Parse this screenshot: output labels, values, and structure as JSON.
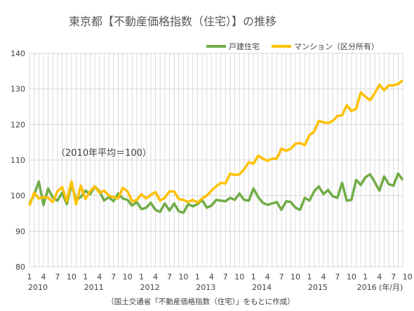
{
  "chart_data": {
    "type": "line",
    "title": "東京都【不動産価格指数（住宅）】の推移",
    "annotation": "（2010年平均＝100）",
    "source": "（国土交通省「不動産価格指数（住宅）」をもとに作成）",
    "x_unit_label": "(年/月)",
    "ylim": [
      80,
      140
    ],
    "y_ticks": [
      "80",
      "90",
      "100",
      "110",
      "120",
      "130",
      "140"
    ],
    "x_tick_months": [
      "1",
      "4",
      "7",
      "10",
      "1",
      "4",
      "7",
      "10",
      "1",
      "4",
      "7",
      "10",
      "1",
      "4",
      "7",
      "10",
      "1",
      "4",
      "7",
      "10",
      "1",
      "4",
      "7",
      "10",
      "1",
      "4",
      "7",
      "10"
    ],
    "year_labels": [
      "2010",
      "2011",
      "2012",
      "2013",
      "2014",
      "2015",
      "2016"
    ],
    "grid": true,
    "legend_position": "top-right",
    "series": [
      {
        "name": "戸建住宅",
        "color": "#70AD47",
        "values": [
          97.8,
          100.2,
          104.0,
          97.4,
          102.0,
          99.4,
          98.6,
          100.8,
          97.6,
          103.2,
          98.8,
          99.6,
          101.4,
          100.4,
          102.6,
          101.2,
          98.6,
          99.6,
          98.4,
          100.6,
          99.2,
          98.8,
          97.2,
          98.2,
          96.2,
          96.6,
          98.0,
          96.0,
          95.4,
          97.8,
          95.8,
          97.8,
          95.6,
          95.2,
          97.6,
          97.0,
          97.6,
          98.8,
          96.6,
          97.2,
          98.8,
          98.6,
          98.4,
          99.4,
          98.8,
          100.6,
          98.8,
          98.6,
          102.0,
          99.6,
          98.0,
          97.4,
          97.8,
          98.2,
          96.0,
          98.4,
          98.2,
          96.6,
          96.0,
          99.4,
          98.6,
          101.2,
          102.6,
          100.4,
          101.6,
          99.8,
          99.4,
          103.6,
          98.6,
          98.8,
          104.4,
          103.0,
          105.2,
          106.0,
          103.8,
          101.4,
          105.4,
          103.2,
          102.8,
          106.2,
          104.4
        ]
      },
      {
        "name": "マンション（区分所有）",
        "color": "#FFC000",
        "values": [
          97.2,
          100.8,
          99.2,
          99.6,
          99.4,
          98.2,
          101.2,
          102.4,
          98.4,
          104.0,
          97.6,
          102.8,
          99.0,
          101.2,
          102.6,
          100.8,
          101.4,
          100.0,
          99.6,
          99.2,
          102.2,
          101.2,
          98.4,
          98.8,
          100.4,
          99.2,
          100.2,
          101.0,
          98.6,
          99.4,
          101.2,
          101.2,
          99.0,
          98.8,
          98.2,
          98.8,
          98.0,
          99.2,
          100.0,
          101.4,
          102.6,
          103.6,
          103.4,
          106.2,
          105.8,
          106.0,
          107.4,
          109.4,
          109.0,
          111.2,
          110.4,
          109.8,
          110.4,
          110.4,
          113.2,
          112.6,
          113.2,
          114.6,
          114.8,
          114.2,
          117.0,
          118.0,
          121.0,
          120.6,
          120.4,
          121.0,
          122.4,
          122.6,
          125.4,
          123.8,
          124.4,
          129.0,
          127.8,
          126.8,
          128.8,
          131.2,
          129.6,
          131.0,
          131.0,
          131.4,
          132.4
        ]
      }
    ]
  }
}
